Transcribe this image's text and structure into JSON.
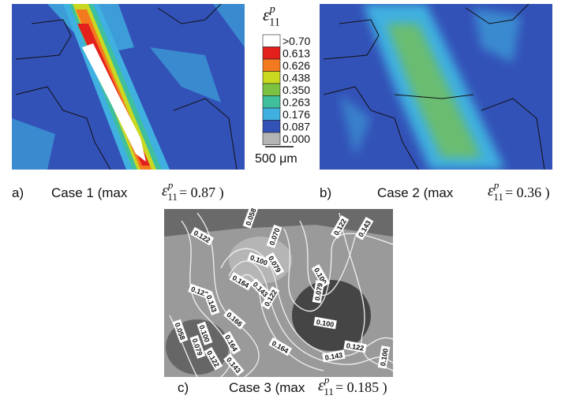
{
  "symbol": {
    "base": "ε",
    "sub": "11",
    "sup": "p"
  },
  "colorbar": {
    "levels": [
      {
        "label": ">0.70",
        "color": "#ffffff"
      },
      {
        "label": "0.613",
        "color": "#e3201c"
      },
      {
        "label": "0.626",
        "color": "#f47a20"
      },
      {
        "label": "0.438",
        "color": "#c9d820"
      },
      {
        "label": "0.350",
        "color": "#7cc242"
      },
      {
        "label": "0.263",
        "color": "#3fbf9c"
      },
      {
        "label": "0.176",
        "color": "#3fb0e0"
      },
      {
        "label": "0.087",
        "color": "#3352b8"
      },
      {
        "label": "0.000",
        "color": "#b4b4b4"
      }
    ],
    "scale_bar": "500 μm"
  },
  "panels": [
    {
      "label": "a)",
      "caption": "Case 1 (max",
      "result": "= 0.87 )"
    },
    {
      "label": "b)",
      "caption": "Case 2 (max",
      "result": "= 0.36 )"
    },
    {
      "label": "c)",
      "caption": "Case 3 (max",
      "result": "= 0.185 )"
    }
  ],
  "contour_labels": [
    "0.058",
    "0.070",
    "0.122",
    "0.143",
    "0.122",
    "0.100",
    "0.079",
    "0.100",
    "0.164",
    "0.143",
    "0.122",
    "0.122",
    "0.143",
    "0.079",
    "0.166",
    "0.100",
    "0.058",
    "0.100",
    "0.079",
    "0.164",
    "0.122",
    "0.143",
    "0.164",
    "0.143",
    "0.122",
    "0.100"
  ]
}
